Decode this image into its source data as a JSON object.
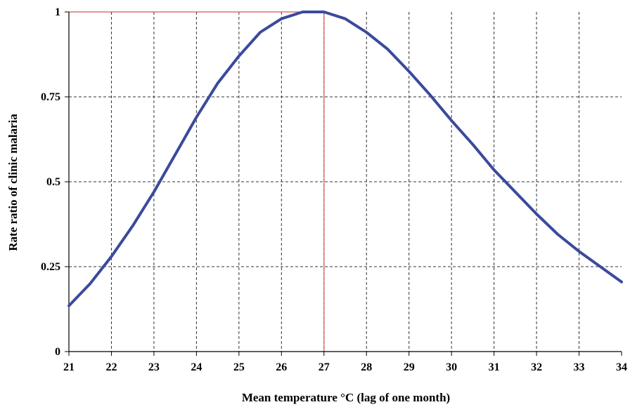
{
  "chart_data": {
    "type": "line",
    "title": "",
    "xlabel": "Mean temperature °C (lag of one  month)",
    "ylabel": "Rate ratio of clinic malaria",
    "xlim": [
      21,
      34
    ],
    "ylim": [
      0,
      1
    ],
    "x_ticks": [
      "21",
      "22",
      "23",
      "24",
      "25",
      "26",
      "27",
      "28",
      "29",
      "30",
      "31",
      "32",
      "33",
      "34"
    ],
    "y_ticks": [
      "0",
      "0.25",
      "0.5",
      "0.75",
      "1"
    ],
    "grid": true,
    "legend": "none",
    "series": [
      {
        "color": "#3a4a9c",
        "x": [
          21,
          21.5,
          22,
          22.5,
          23,
          23.5,
          24,
          24.5,
          25,
          25.5,
          26,
          26.5,
          27,
          27.5,
          28,
          28.5,
          29,
          29.5,
          30,
          30.5,
          31,
          31.5,
          32,
          32.5,
          33,
          33.5,
          34
        ],
        "y": [
          0.135,
          0.2,
          0.28,
          0.37,
          0.47,
          0.58,
          0.69,
          0.79,
          0.87,
          0.94,
          0.98,
          1.0,
          1.0,
          0.98,
          0.94,
          0.89,
          0.825,
          0.755,
          0.68,
          0.61,
          0.535,
          0.47,
          0.405,
          0.345,
          0.295,
          0.25,
          0.205
        ]
      }
    ],
    "reference_lines": {
      "color": "#d9534f",
      "x": 27,
      "y": 1
    }
  }
}
